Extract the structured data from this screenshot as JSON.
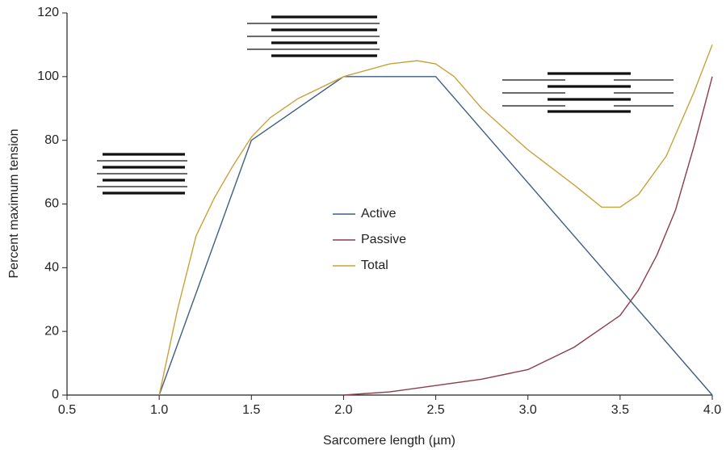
{
  "chart_data": {
    "type": "line",
    "xlabel": "Sarcomere length (µm)",
    "ylabel": "Percent maximum tension",
    "xlim": [
      0.5,
      4.0
    ],
    "xticks": [
      0.5,
      {
        "value": 1,
        "label": "1.0"
      },
      1.5,
      {
        "value": 2,
        "label": "2.0"
      },
      2.5,
      {
        "value": 3,
        "label": "3.0"
      },
      3.5,
      {
        "value": 4,
        "label": "4.0"
      }
    ],
    "ylim": [
      0,
      120
    ],
    "yticks": [
      0,
      20,
      40,
      60,
      80,
      100,
      120
    ],
    "series": [
      {
        "name": "Active",
        "color": "#3f5f82",
        "x": [
          1.0,
          1.5,
          2.0,
          2.5,
          4.0
        ],
        "values": [
          0,
          80,
          100,
          100,
          0
        ]
      },
      {
        "name": "Passive",
        "color": "#8e3b4c",
        "x": [
          2.0,
          2.25,
          2.5,
          2.75,
          3.0,
          3.25,
          3.5,
          3.6,
          3.7,
          3.8,
          3.9,
          4.0
        ],
        "values": [
          0,
          1,
          3,
          5,
          8,
          15,
          25,
          33,
          44,
          58,
          78,
          100
        ]
      },
      {
        "name": "Total",
        "color": "#c9a23a",
        "x": [
          1.0,
          1.1,
          1.2,
          1.3,
          1.4,
          1.5,
          1.6,
          1.75,
          2.0,
          2.25,
          2.4,
          2.5,
          2.6,
          2.75,
          3.0,
          3.25,
          3.4,
          3.5,
          3.6,
          3.75,
          3.9,
          4.0
        ],
        "values": [
          0,
          27,
          50,
          62,
          72,
          81,
          87,
          93,
          100,
          104,
          105,
          104,
          100,
          90,
          77,
          66,
          59,
          59,
          63,
          75,
          95,
          110
        ]
      }
    ]
  }
}
